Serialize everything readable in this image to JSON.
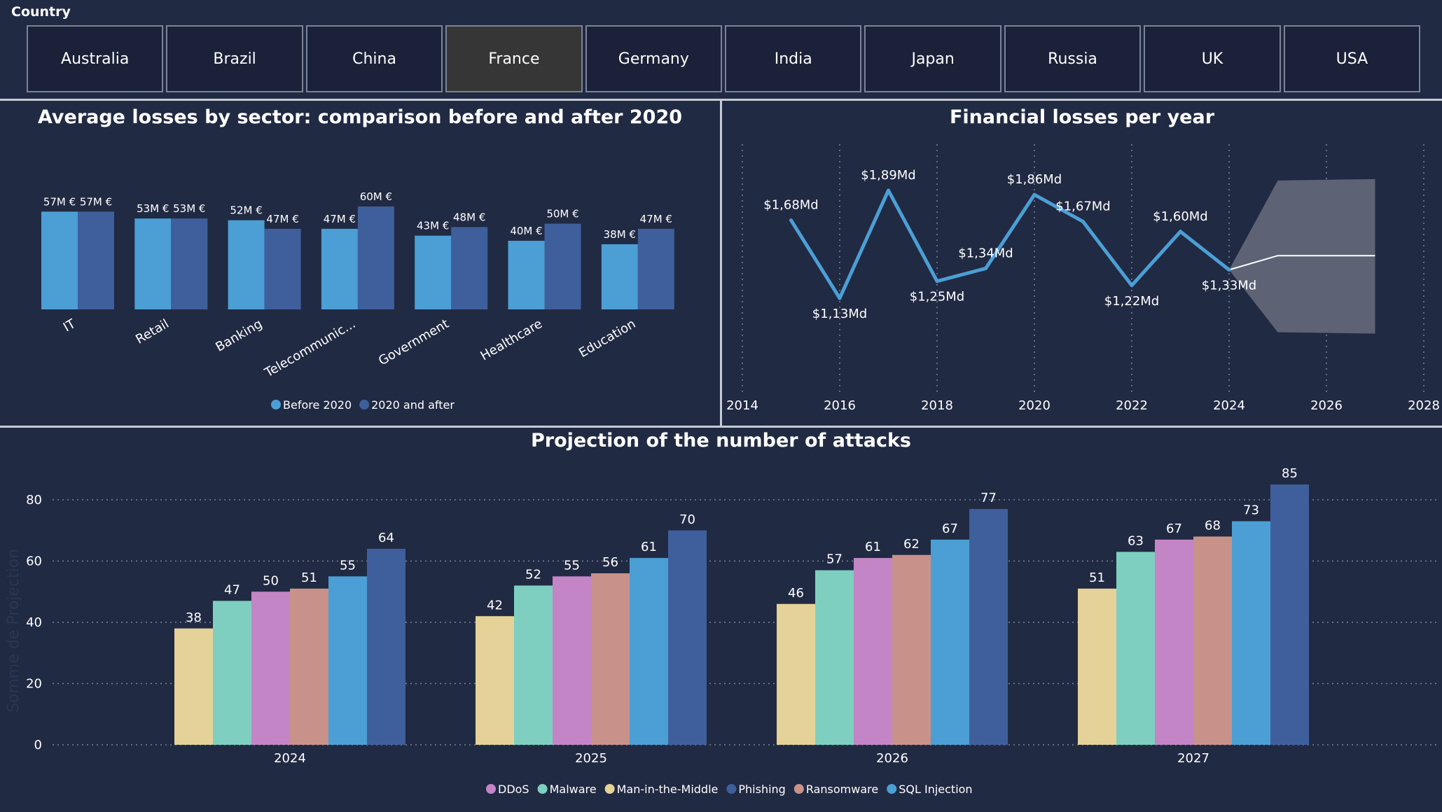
{
  "slicer": {
    "label": "Country",
    "items": [
      "Australia",
      "Brazil",
      "China",
      "France",
      "Germany",
      "India",
      "Japan",
      "Russia",
      "UK",
      "USA"
    ],
    "selected": "France"
  },
  "colors": {
    "background": "#212a43",
    "before": "#4b9fd5",
    "after": "#3f5f9c",
    "line": "#4b9fd5",
    "forecast_band": "#5d6374",
    "ddos": "#c385c6",
    "malware": "#7ecfc0",
    "mitm": "#e5d298",
    "phishing": "#3f5f9c",
    "ransomware": "#c8928b",
    "sql_injection": "#4b9fd5"
  },
  "chart_data": [
    {
      "type": "bar",
      "title": "Average losses by sector: comparison before and after 2020",
      "categories": [
        "IT",
        "Retail",
        "Banking",
        "Telecommunic...",
        "Government",
        "Healthcare",
        "Education"
      ],
      "series": [
        {
          "name": "Before 2020",
          "values": [
            57,
            53,
            52,
            47,
            43,
            40,
            38
          ],
          "labels": [
            "57M €",
            "53M €",
            "52M €",
            "47M €",
            "43M €",
            "40M €",
            "38M €"
          ]
        },
        {
          "name": "2020 and after",
          "values": [
            57,
            53,
            47,
            60,
            48,
            50,
            47
          ],
          "labels": [
            "57M €",
            "53M €",
            "47M €",
            "60M €",
            "48M €",
            "50M €",
            "47M €"
          ]
        }
      ],
      "legend": "bottom"
    },
    {
      "type": "line",
      "title": "Financial losses per year",
      "x": [
        2015,
        2016,
        2017,
        2018,
        2019,
        2020,
        2021,
        2022,
        2023,
        2024
      ],
      "values": [
        1.68,
        1.13,
        1.89,
        1.25,
        1.34,
        1.86,
        1.67,
        1.22,
        1.6,
        1.33
      ],
      "labels": [
        "$1,68Md",
        "$1,13Md",
        "$1,89Md",
        "$1,25Md",
        "$1,34Md",
        "$1,86Md",
        "$1,67Md",
        "$1,22Md",
        "$1,60Md",
        "$1,33Md"
      ],
      "forecast": {
        "x": [
          2024,
          2025,
          2027
        ],
        "values": [
          1.33,
          1.43,
          1.43
        ],
        "upper": [
          1.33,
          1.96,
          1.97
        ],
        "lower": [
          1.33,
          0.89,
          0.88
        ]
      },
      "xticks": [
        "2014",
        "2016",
        "2018",
        "2020",
        "2022",
        "2024",
        "2026",
        "2028"
      ],
      "xlim": [
        2014,
        2028
      ],
      "grid": "vertical dotted"
    },
    {
      "type": "bar",
      "title": "Projection of the number of attacks",
      "ylabel": "Somme de Projection",
      "categories": [
        "2024",
        "2025",
        "2026",
        "2027"
      ],
      "series": [
        {
          "name": "Man-in-the-Middle",
          "values": [
            38,
            42,
            46,
            51
          ]
        },
        {
          "name": "Malware",
          "values": [
            47,
            52,
            57,
            63
          ]
        },
        {
          "name": "DDoS",
          "values": [
            50,
            55,
            61,
            67
          ]
        },
        {
          "name": "Ransomware",
          "values": [
            51,
            56,
            62,
            68
          ]
        },
        {
          "name": "SQL Injection",
          "values": [
            55,
            61,
            67,
            73
          ]
        },
        {
          "name": "Phishing",
          "values": [
            64,
            70,
            77,
            85
          ]
        }
      ],
      "legend_order": [
        "DDoS",
        "Malware",
        "Man-in-the-Middle",
        "Phishing",
        "Ransomware",
        "SQL Injection"
      ],
      "yticks": [
        "0",
        "20",
        "40",
        "60",
        "80"
      ],
      "ylim": [
        0,
        85
      ],
      "grid": "horizontal dotted",
      "legend": "bottom"
    }
  ]
}
